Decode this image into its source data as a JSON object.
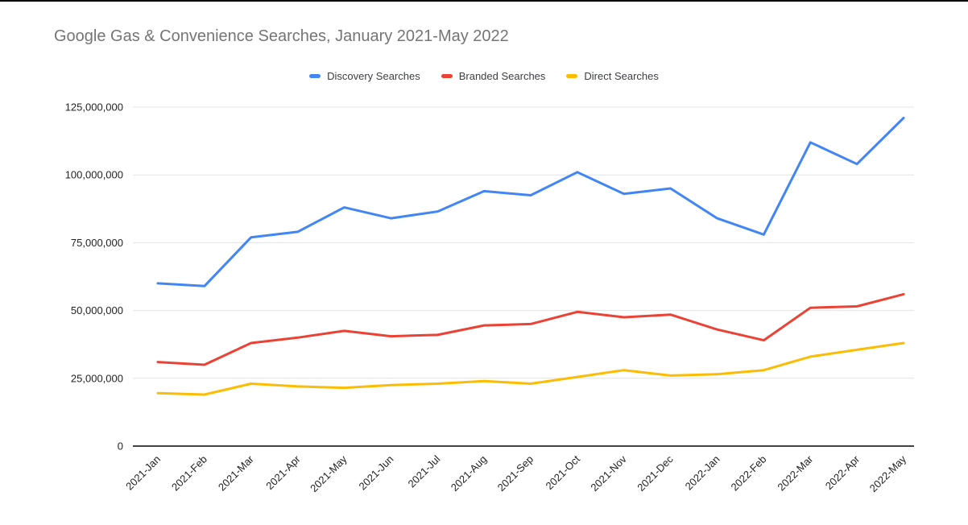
{
  "chart_data": {
    "type": "line",
    "title": "Google Gas & Convenience Searches, January 2021-May 2022",
    "xlabel": "",
    "ylabel": "",
    "grid": true,
    "legend_position": "top",
    "ylim": [
      0,
      125000000
    ],
    "y_ticks": [
      0,
      25000000,
      50000000,
      75000000,
      100000000,
      125000000
    ],
    "y_tick_labels": [
      "0",
      "25,000,000",
      "50,000,000",
      "75,000,000",
      "100,000,000",
      "125,000,000"
    ],
    "categories": [
      "2021-Jan",
      "2021-Feb",
      "2021-Mar",
      "2021-Apr",
      "2021-May",
      "2021-Jun",
      "2021-Jul",
      "2021-Aug",
      "2021-Sep",
      "2021-Oct",
      "2021-Nov",
      "2021-Dec",
      "2022-Jan",
      "2022-Feb",
      "2022-Mar",
      "2022-Apr",
      "2022-May"
    ],
    "series": [
      {
        "name": "Discovery Searches",
        "color": "#4285F4",
        "values": [
          60000000,
          59000000,
          77000000,
          79000000,
          88000000,
          84000000,
          86500000,
          94000000,
          92500000,
          101000000,
          93000000,
          95000000,
          84000000,
          78000000,
          112000000,
          104000000,
          121000000
        ]
      },
      {
        "name": "Branded Searches",
        "color": "#EA4335",
        "values": [
          31000000,
          30000000,
          38000000,
          40000000,
          42500000,
          40500000,
          41000000,
          44500000,
          45000000,
          49500000,
          47500000,
          48500000,
          43000000,
          39000000,
          51000000,
          51500000,
          56000000
        ]
      },
      {
        "name": "Direct Searches",
        "color": "#FBBC04",
        "values": [
          19500000,
          19000000,
          23000000,
          22000000,
          21500000,
          22500000,
          23000000,
          24000000,
          23000000,
          25500000,
          28000000,
          26000000,
          26500000,
          28000000,
          33000000,
          35500000,
          38000000
        ]
      }
    ],
    "colors": {
      "gridline": "#e3e3e3",
      "axis_line": "#424242",
      "tick_label": "#222222",
      "title": "#757575"
    }
  }
}
